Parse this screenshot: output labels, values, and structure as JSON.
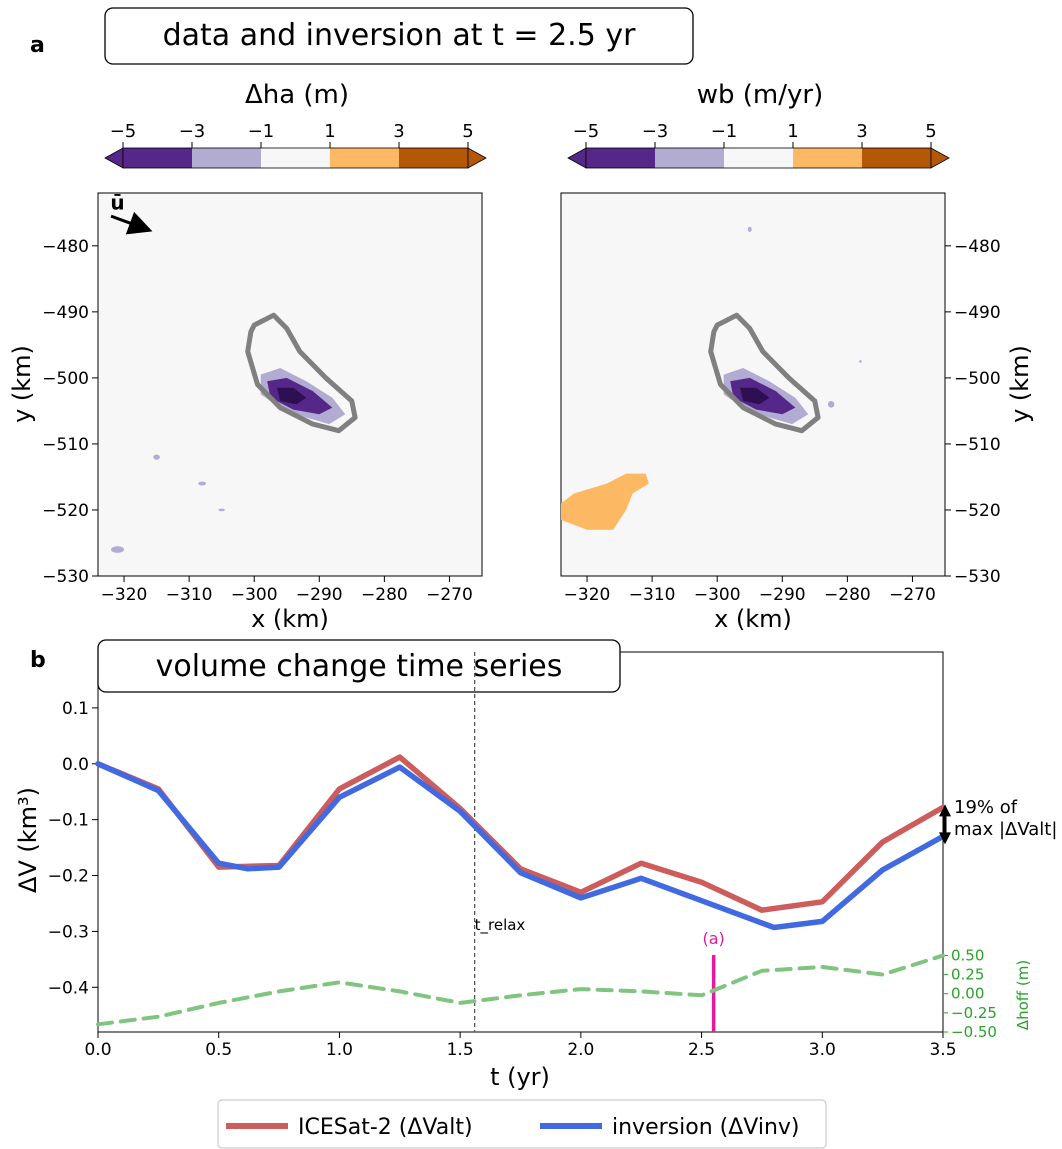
{
  "panel_a": {
    "letter": "a",
    "title": "data and inversion at t = 2.5 yr",
    "colors": [
      "#542788",
      "#b2abd2",
      "#f7f7f7",
      "#fdb863",
      "#b35806"
    ],
    "background": "#f7f7f7",
    "outline_color": "#808080",
    "arrow_label": "ū",
    "plots": [
      {
        "cbar_label": "Δha (m)",
        "cbar_ticks": [
          "−5",
          "−3",
          "−1",
          "1",
          "3",
          "5"
        ],
        "ytick_side": "left"
      },
      {
        "cbar_label": "wb (m/yr)",
        "cbar_ticks": [
          "−5",
          "−3",
          "−1",
          "1",
          "3",
          "5"
        ],
        "ytick_side": "right"
      }
    ],
    "xlabel": "x (km)",
    "ylabel": "y (km)",
    "xticks": [
      "−320",
      "−310",
      "−300",
      "−290",
      "−280",
      "−270"
    ],
    "yticks": [
      "−480",
      "−490",
      "−500",
      "−510",
      "−520",
      "−530"
    ]
  },
  "panel_b": {
    "letter": "b",
    "title": "volume change time series",
    "trelax_label": "t_relax",
    "marker_label": "(a)",
    "annotation_line1": "19% of",
    "annotation_line2": "max |ΔValt|",
    "legend": [
      {
        "label": "ICESat-2 (ΔValt)",
        "color": "#cd5c5c"
      },
      {
        "label": "inversion (ΔVinv)",
        "color": "#4169e1"
      }
    ],
    "right_axis_color": "#2ca02c"
  },
  "chart_data": {
    "type": "line",
    "xlabel": "t (yr)",
    "ylabel": "ΔV (km³)",
    "xlim": [
      0,
      3.5
    ],
    "ylim": [
      -0.48,
      0.2
    ],
    "xticks": [
      "0.0",
      "0.5",
      "1.0",
      "1.5",
      "2.0",
      "2.5",
      "3.0",
      "3.5"
    ],
    "yticks": [
      "0.1",
      "0.0",
      "−0.1",
      "−0.2",
      "−0.3",
      "−0.4"
    ],
    "series": [
      {
        "name": "ICESat-2 (ΔValt)",
        "color": "#cd5c5c",
        "x": [
          0,
          0.25,
          0.5,
          0.75,
          1.0,
          1.25,
          1.5,
          1.75,
          2.0,
          2.25,
          2.5,
          2.75,
          3.0,
          3.25,
          3.5
        ],
        "y": [
          0,
          -0.045,
          -0.185,
          -0.182,
          -0.045,
          0.012,
          -0.08,
          -0.188,
          -0.23,
          -0.178,
          -0.212,
          -0.262,
          -0.247,
          -0.14,
          -0.078
        ]
      },
      {
        "name": "inversion (ΔVinv)",
        "color": "#4169e1",
        "x": [
          0,
          0.25,
          0.5,
          0.62,
          0.75,
          1.0,
          1.25,
          1.5,
          1.75,
          2.0,
          2.25,
          2.5,
          2.8,
          3.0,
          3.25,
          3.5
        ],
        "y": [
          0,
          -0.048,
          -0.178,
          -0.188,
          -0.185,
          -0.06,
          -0.006,
          -0.085,
          -0.195,
          -0.24,
          -0.205,
          -0.245,
          -0.293,
          -0.282,
          -0.19,
          -0.13
        ]
      },
      {
        "name": "Δhoff (m)",
        "color": "#7fc47f",
        "axis": "right",
        "x": [
          0,
          0.25,
          0.5,
          0.75,
          1.0,
          1.25,
          1.5,
          1.75,
          2.0,
          2.25,
          2.5,
          2.75,
          3.0,
          3.25,
          3.5
        ],
        "y": [
          -0.4,
          -0.3,
          -0.12,
          0.03,
          0.15,
          0.03,
          -0.12,
          -0.02,
          0.06,
          0.03,
          -0.02,
          0.3,
          0.35,
          0.25,
          0.5
        ]
      }
    ],
    "right_axis": {
      "label": "Δhoff (m)",
      "ylim": [
        -0.5,
        0.65
      ],
      "ticks": [
        "0.50",
        "0.25",
        "0.00",
        "−0.25",
        "−0.50"
      ]
    },
    "vlines": [
      {
        "x": 1.56,
        "label": "t_relax",
        "style": "dashed"
      },
      {
        "x": 2.55,
        "label": "(a)",
        "color": "#e6199b"
      }
    ]
  }
}
